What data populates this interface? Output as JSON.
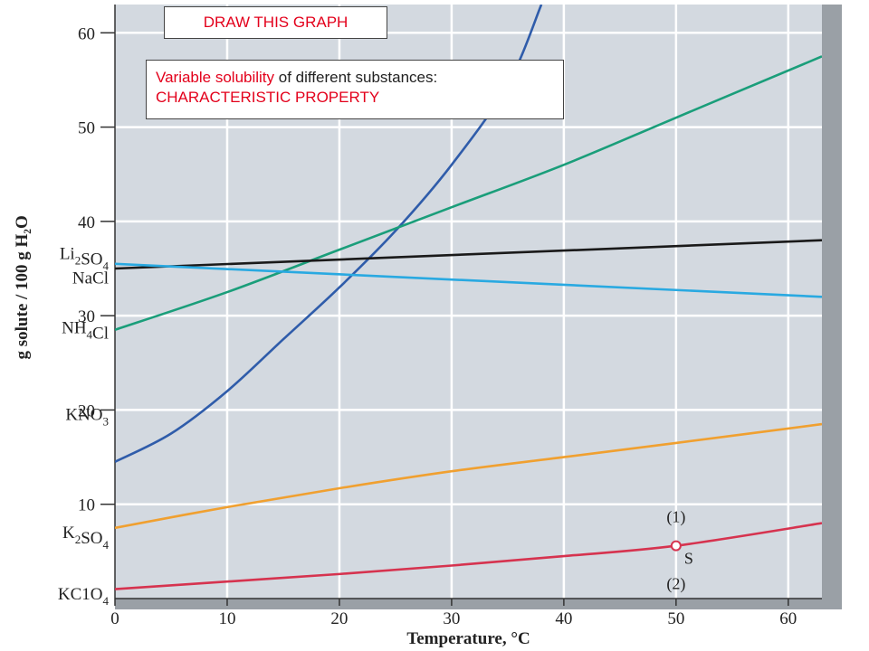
{
  "callouts": {
    "draw": "DRAW THIS GRAPH",
    "note_highlight": "Variable solubility",
    "note_rest": " of different substances:",
    "note_line2": "CHARACTERISTIC PROPERTY"
  },
  "colors": {
    "plot_bg": "#d3d9e0",
    "grid": "#ffffff",
    "callout_text": "#e3001b"
  },
  "chart_data": {
    "type": "line",
    "title": "",
    "xlabel": "Temperature, °C",
    "ylabel": "g solute / 100 g H₂O",
    "xlim": [
      0,
      63
    ],
    "ylim": [
      0,
      63
    ],
    "x_ticks": [
      0,
      10,
      20,
      30,
      40,
      50,
      60
    ],
    "y_ticks": [
      10,
      20,
      30,
      40,
      50,
      60
    ],
    "grid": true,
    "series": [
      {
        "name": "KNO₃",
        "label_base": "KNO",
        "label_sub": "3",
        "label_y": 19.5,
        "color": "#2f5caa",
        "x": [
          0,
          5,
          10,
          15,
          20,
          25,
          30,
          35,
          38
        ],
        "y": [
          14.5,
          17.5,
          22,
          27.5,
          33,
          39,
          46,
          54.5,
          63
        ]
      },
      {
        "name": "NH₄Cl",
        "label_base": "NH",
        "label_sub": "4",
        "label_tail": "Cl",
        "label_y": 28.7,
        "color": "#1a9e7a",
        "x": [
          0,
          10,
          20,
          30,
          40,
          50,
          63
        ],
        "y": [
          28.5,
          32.5,
          37,
          41.5,
          46,
          51,
          57.5
        ]
      },
      {
        "name": "Li₂SO₄",
        "label_base": "Li",
        "label_sub": "2",
        "label_tail": "SO",
        "label_sub2": "4",
        "label_y": 36.6,
        "color": "#1a1a1a",
        "x": [
          0,
          63
        ],
        "y": [
          35,
          38
        ]
      },
      {
        "name": "NaCl",
        "label_base": "NaCl",
        "label_y": 34.0,
        "color": "#29a9e1",
        "x": [
          0,
          63
        ],
        "y": [
          35.5,
          32
        ]
      },
      {
        "name": "K₂SO₄",
        "label_base": "K",
        "label_sub": "2",
        "label_tail": "SO",
        "label_sub2": "4",
        "label_y": 7.0,
        "color": "#f0a030",
        "x": [
          0,
          10,
          20,
          30,
          40,
          50,
          63
        ],
        "y": [
          7.5,
          9.7,
          11.7,
          13.5,
          15,
          16.5,
          18.5
        ]
      },
      {
        "name": "KClO₄",
        "label_base": "KC1O",
        "label_sub": "4",
        "label_y": 0.5,
        "color": "#d6334f",
        "x": [
          0,
          10,
          20,
          30,
          40,
          50,
          63
        ],
        "y": [
          1,
          1.8,
          2.6,
          3.5,
          4.5,
          5.6,
          8
        ]
      }
    ],
    "point": {
      "label": "S",
      "x": 50,
      "y": 5.6,
      "above_label": "(1)",
      "below_label": "(2)"
    }
  }
}
